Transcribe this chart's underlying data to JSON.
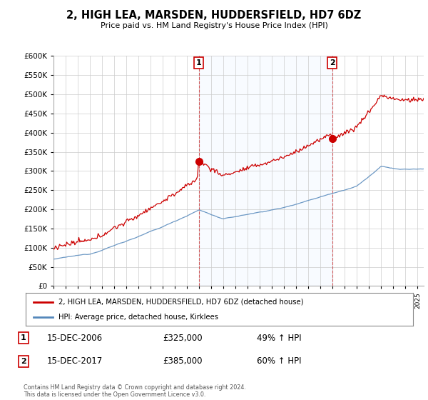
{
  "title": "2, HIGH LEA, MARSDEN, HUDDERSFIELD, HD7 6DZ",
  "subtitle": "Price paid vs. HM Land Registry's House Price Index (HPI)",
  "sale1_date": "15-DEC-2006",
  "sale1_price": 325000,
  "sale1_year": 2006.96,
  "sale1_hpi": "49% ↑ HPI",
  "sale2_date": "15-DEC-2017",
  "sale2_price": 385000,
  "sale2_year": 2017.96,
  "sale2_hpi": "60% ↑ HPI",
  "legend1": "2, HIGH LEA, MARSDEN, HUDDERSFIELD, HD7 6DZ (detached house)",
  "legend2": "HPI: Average price, detached house, Kirklees",
  "footer": "Contains HM Land Registry data © Crown copyright and database right 2024.\nThis data is licensed under the Open Government Licence v3.0.",
  "red_color": "#cc0000",
  "blue_color": "#5588bb",
  "fill_color": "#ddeeff",
  "background_color": "#ffffff",
  "grid_color": "#cccccc",
  "ylim": [
    0,
    600000
  ],
  "yticks": [
    0,
    50000,
    100000,
    150000,
    200000,
    250000,
    300000,
    350000,
    400000,
    450000,
    500000,
    550000,
    600000
  ],
  "xmin": 1995,
  "xmax": 2025.5
}
